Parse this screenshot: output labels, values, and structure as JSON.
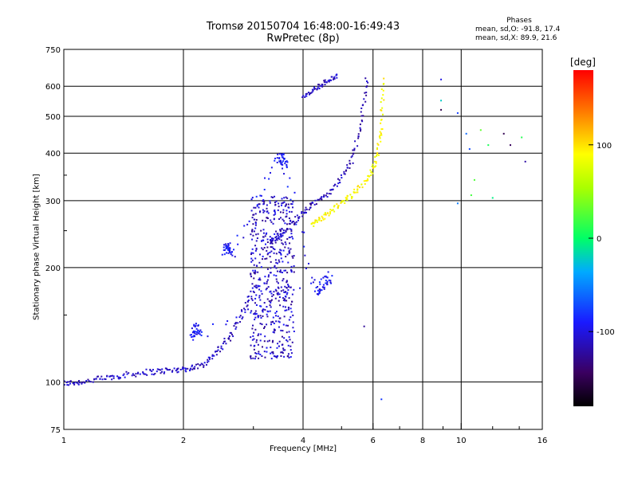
{
  "chart_data": {
    "type": "scatter",
    "title": "Tromsø 20150704 16:48:00-16:49:43",
    "subtitle": "RwPretec (8p)",
    "xlabel": "Frequency [MHz]",
    "ylabel": "Stationary phase Virtual Height [km]",
    "x_scale": "log",
    "y_scale": "log",
    "xlim": [
      1,
      16
    ],
    "ylim": [
      75,
      750
    ],
    "x_ticks": [
      "1",
      "2",
      "4",
      "6",
      "8",
      "10",
      "16"
    ],
    "y_ticks": [
      "75",
      "100",
      "200",
      "300",
      "400",
      "500",
      "600",
      "750"
    ],
    "grid": true,
    "colorbar": {
      "label": "[deg]",
      "range": [
        -180,
        180
      ],
      "ticks": [
        "100",
        "0",
        "-100"
      ],
      "tick_values": [
        100,
        0,
        -100
      ]
    },
    "stats": {
      "title": "Phases",
      "o_line": "mean, sd,O: -91.8, 17.4",
      "x_line": "mean, sd,X: 89.9, 21.6"
    },
    "traces": [
      {
        "name_hint": "low trace",
        "x": [
          1.0,
          1.1,
          1.25,
          1.4,
          1.6,
          1.8,
          2.0,
          2.2,
          2.4,
          2.6,
          2.8,
          3.0
        ],
        "y": [
          99,
          100,
          102,
          104,
          106,
          107,
          108,
          110,
          118,
          130,
          150,
          175
        ],
        "phase": -110,
        "spread": 0.012
      },
      {
        "name_hint": "blob",
        "x_range": [
          2.95,
          3.8
        ],
        "y_range": [
          115,
          310
        ],
        "phase": -110,
        "count": 520
      },
      {
        "name_hint": "O trace",
        "x": [
          3.3,
          3.5,
          3.8,
          4.1,
          4.5,
          4.9,
          5.3,
          5.6,
          5.8
        ],
        "y": [
          232,
          245,
          265,
          285,
          305,
          335,
          380,
          480,
          640
        ],
        "phase": -115,
        "spread": 0.01
      },
      {
        "name_hint": "X trace",
        "x": [
          4.2,
          4.5,
          4.9,
          5.3,
          5.8,
          6.1,
          6.3,
          6.35
        ],
        "y": [
          258,
          272,
          290,
          310,
          340,
          380,
          460,
          640
        ],
        "phase": 90,
        "spread": 0.01
      },
      {
        "name_hint": "upper segment",
        "x": [
          4.0,
          4.3,
          4.6,
          4.9
        ],
        "y": [
          560,
          590,
          620,
          640
        ],
        "phase": -110,
        "spread": 0.008
      },
      {
        "name_hint": "sporadic",
        "x": [
          2.55,
          2.6,
          2.65,
          3.45,
          3.55,
          3.6,
          4.3,
          4.5,
          4.7,
          2.1,
          2.15,
          2.2
        ],
        "y": [
          220,
          230,
          215,
          380,
          395,
          370,
          170,
          180,
          190,
          130,
          140,
          135
        ],
        "phase": -95,
        "spread": 0.02
      },
      {
        "name_hint": "scatter high freq",
        "x": [
          8.9,
          8.9,
          8.9,
          9.8,
          10.3,
          10.5,
          11.7,
          11.2,
          10.8,
          12.8,
          13.3,
          14.2,
          14.5,
          9.8,
          10.6,
          12.0,
          6.3,
          5.7
        ],
        "y": [
          625,
          550,
          520,
          510,
          450,
          410,
          420,
          460,
          340,
          450,
          420,
          440,
          380,
          295,
          310,
          305,
          90,
          140
        ],
        "phase": -60,
        "spread": 0.0
      }
    ]
  }
}
